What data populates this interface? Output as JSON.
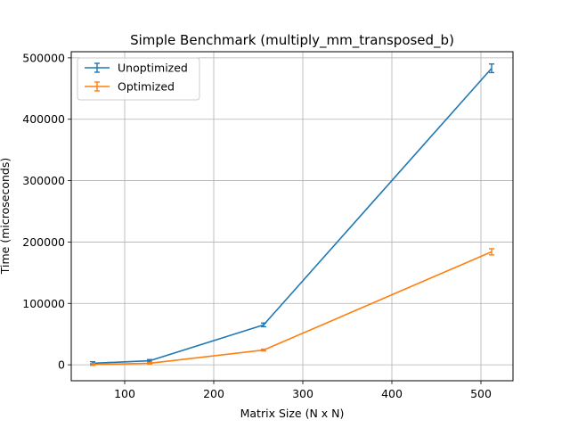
{
  "chart_data": {
    "type": "line",
    "title": "Simple Benchmark (multiply_mm_transposed_b)",
    "xlabel": "Matrix Size (N x N)",
    "ylabel": "Time (microseconds)",
    "xlim": [
      40,
      536
    ],
    "ylim": [
      -26000,
      510000
    ],
    "xticks": [
      100,
      200,
      300,
      400,
      500
    ],
    "yticks": [
      0,
      100000,
      200000,
      300000,
      400000,
      500000
    ],
    "grid": true,
    "legend_position": "upper-left",
    "x": [
      64,
      128,
      256,
      512
    ],
    "series": [
      {
        "name": "Unoptimized",
        "color": "#1f77b4",
        "values": [
          2500,
          6500,
          65000,
          483000
        ],
        "errors": [
          2500,
          2000,
          3000,
          7000
        ]
      },
      {
        "name": "Optimized",
        "color": "#ff7f0e",
        "values": [
          500,
          2500,
          24000,
          184000
        ],
        "errors": [
          1500,
          1200,
          1500,
          5000
        ]
      }
    ]
  }
}
